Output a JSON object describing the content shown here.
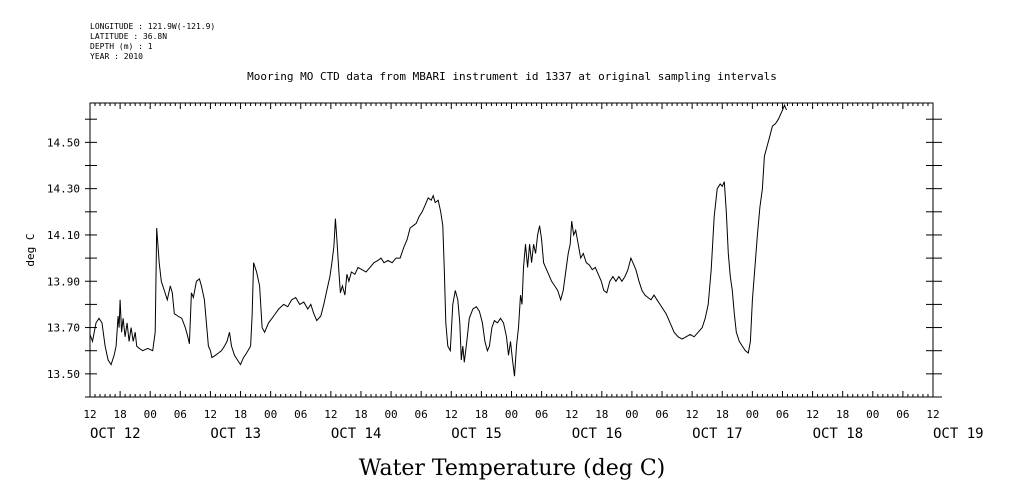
{
  "meta": {
    "longitude": "LONGITUDE : 121.9W(-121.9)",
    "latitude": "LATITUDE : 36.8N",
    "depth": "DEPTH (m) : 1",
    "year": "YEAR : 2010"
  },
  "chart_data": {
    "type": "line",
    "title": "Mooring MO CTD data from MBARI instrument id 1337 at original sampling intervals",
    "xlabel": "Water Temperature (deg C)",
    "ylabel": "deg C",
    "ylim": [
      13.4,
      14.67
    ],
    "xlim_hours": [
      0,
      168
    ],
    "yticks": [
      "13.50",
      "13.70",
      "13.90",
      "14.10",
      "14.30",
      "14.50"
    ],
    "xtick_hour_labels": [
      "12",
      "18",
      "00",
      "06",
      "12",
      "18",
      "00",
      "06",
      "12",
      "18",
      "00",
      "06",
      "12",
      "18",
      "00",
      "06",
      "12",
      "18",
      "00",
      "06",
      "12",
      "18",
      "00",
      "06",
      "12",
      "18",
      "00",
      "06",
      "12"
    ],
    "day_labels": [
      {
        "label": "OCT 12",
        "hour": 0
      },
      {
        "label": "OCT 13",
        "hour": 24
      },
      {
        "label": "OCT 14",
        "hour": 48
      },
      {
        "label": "OCT 15",
        "hour": 72
      },
      {
        "label": "OCT 16",
        "hour": 96
      },
      {
        "label": "OCT 17",
        "hour": 120
      },
      {
        "label": "OCT 18",
        "hour": 144
      },
      {
        "label": "OCT 19",
        "hour": 168
      }
    ],
    "series": [
      {
        "points": [
          [
            0,
            13.67
          ],
          [
            0.5,
            13.64
          ],
          [
            1.2,
            13.72
          ],
          [
            1.8,
            13.74
          ],
          [
            2.4,
            13.72
          ],
          [
            3,
            13.62
          ],
          [
            3.6,
            13.56
          ],
          [
            4.2,
            13.54
          ],
          [
            4.8,
            13.58
          ],
          [
            5.2,
            13.62
          ],
          [
            5.6,
            13.75
          ],
          [
            5.8,
            13.7
          ],
          [
            6,
            13.82
          ],
          [
            6.3,
            13.68
          ],
          [
            6.6,
            13.74
          ],
          [
            7,
            13.66
          ],
          [
            7.4,
            13.72
          ],
          [
            7.8,
            13.64
          ],
          [
            8.2,
            13.7
          ],
          [
            8.6,
            13.64
          ],
          [
            9,
            13.68
          ],
          [
            9.3,
            13.62
          ],
          [
            9.8,
            13.61
          ],
          [
            10.5,
            13.6
          ],
          [
            11.5,
            13.61
          ],
          [
            12.5,
            13.6
          ],
          [
            13,
            13.68
          ],
          [
            13.3,
            14.13
          ],
          [
            13.8,
            13.98
          ],
          [
            14.2,
            13.9
          ],
          [
            14.8,
            13.86
          ],
          [
            15.4,
            13.82
          ],
          [
            16,
            13.88
          ],
          [
            16.4,
            13.85
          ],
          [
            16.8,
            13.76
          ],
          [
            17.5,
            13.75
          ],
          [
            18.3,
            13.74
          ],
          [
            19,
            13.7
          ],
          [
            19.5,
            13.66
          ],
          [
            19.8,
            13.63
          ],
          [
            20.2,
            13.85
          ],
          [
            20.6,
            13.83
          ],
          [
            21.2,
            13.9
          ],
          [
            21.8,
            13.91
          ],
          [
            22.2,
            13.88
          ],
          [
            22.8,
            13.82
          ],
          [
            23.2,
            13.72
          ],
          [
            23.6,
            13.62
          ],
          [
            24,
            13.6
          ],
          [
            24.3,
            13.57
          ],
          [
            25,
            13.58
          ],
          [
            25.6,
            13.59
          ],
          [
            26.2,
            13.6
          ],
          [
            26.8,
            13.62
          ],
          [
            27.3,
            13.64
          ],
          [
            27.8,
            13.68
          ],
          [
            28.2,
            13.62
          ],
          [
            28.8,
            13.58
          ],
          [
            29.4,
            13.56
          ],
          [
            30,
            13.54
          ],
          [
            30.6,
            13.57
          ],
          [
            31.2,
            13.59
          ],
          [
            32,
            13.62
          ],
          [
            32.3,
            13.75
          ],
          [
            32.6,
            13.98
          ],
          [
            33.2,
            13.94
          ],
          [
            33.8,
            13.88
          ],
          [
            34.3,
            13.7
          ],
          [
            34.8,
            13.68
          ],
          [
            35.6,
            13.72
          ],
          [
            36.6,
            13.75
          ],
          [
            37.6,
            13.78
          ],
          [
            38.6,
            13.8
          ],
          [
            39.4,
            13.79
          ],
          [
            40.2,
            13.82
          ],
          [
            41,
            13.83
          ],
          [
            41.8,
            13.8
          ],
          [
            42.6,
            13.81
          ],
          [
            43.4,
            13.78
          ],
          [
            44,
            13.8
          ],
          [
            44.6,
            13.76
          ],
          [
            45.2,
            13.73
          ],
          [
            46,
            13.75
          ],
          [
            46.6,
            13.8
          ],
          [
            47.2,
            13.86
          ],
          [
            47.8,
            13.92
          ],
          [
            48.2,
            13.98
          ],
          [
            48.6,
            14.05
          ],
          [
            48.9,
            14.17
          ],
          [
            49.2,
            14.08
          ],
          [
            49.6,
            13.94
          ],
          [
            49.9,
            13.85
          ],
          [
            50.3,
            13.88
          ],
          [
            50.8,
            13.84
          ],
          [
            51.2,
            13.93
          ],
          [
            51.6,
            13.9
          ],
          [
            52.1,
            13.94
          ],
          [
            52.8,
            13.93
          ],
          [
            53.4,
            13.96
          ],
          [
            54.2,
            13.95
          ],
          [
            55,
            13.94
          ],
          [
            55.8,
            13.96
          ],
          [
            56.6,
            13.98
          ],
          [
            57.4,
            13.99
          ],
          [
            58,
            14.0
          ],
          [
            58.6,
            13.98
          ],
          [
            59.4,
            13.99
          ],
          [
            60.2,
            13.98
          ],
          [
            61,
            14.0
          ],
          [
            61.8,
            14.0
          ],
          [
            62.6,
            14.05
          ],
          [
            63.2,
            14.08
          ],
          [
            63.8,
            14.13
          ],
          [
            64.4,
            14.14
          ],
          [
            65,
            14.15
          ],
          [
            65.6,
            14.18
          ],
          [
            66.2,
            14.2
          ],
          [
            66.8,
            14.23
          ],
          [
            67.4,
            14.26
          ],
          [
            68,
            14.25
          ],
          [
            68.4,
            14.27
          ],
          [
            68.8,
            14.24
          ],
          [
            69.4,
            14.25
          ],
          [
            69.9,
            14.2
          ],
          [
            70.3,
            14.14
          ],
          [
            70.6,
            13.95
          ],
          [
            70.9,
            13.72
          ],
          [
            71.3,
            13.62
          ],
          [
            71.8,
            13.6
          ],
          [
            72.3,
            13.8
          ],
          [
            72.8,
            13.86
          ],
          [
            73.3,
            13.82
          ],
          [
            73.7,
            13.72
          ],
          [
            74,
            13.56
          ],
          [
            74.3,
            13.62
          ],
          [
            74.6,
            13.55
          ],
          [
            75.1,
            13.64
          ],
          [
            75.6,
            13.74
          ],
          [
            76.3,
            13.78
          ],
          [
            77,
            13.79
          ],
          [
            77.6,
            13.77
          ],
          [
            78.2,
            13.72
          ],
          [
            78.7,
            13.64
          ],
          [
            79.2,
            13.6
          ],
          [
            79.6,
            13.62
          ],
          [
            80.1,
            13.7
          ],
          [
            80.6,
            13.73
          ],
          [
            81.2,
            13.72
          ],
          [
            81.8,
            13.74
          ],
          [
            82.4,
            13.72
          ],
          [
            83,
            13.66
          ],
          [
            83.4,
            13.58
          ],
          [
            83.8,
            13.64
          ],
          [
            84.2,
            13.56
          ],
          [
            84.6,
            13.49
          ],
          [
            85,
            13.62
          ],
          [
            85.4,
            13.7
          ],
          [
            85.8,
            13.84
          ],
          [
            86.1,
            13.8
          ],
          [
            86.4,
            13.96
          ],
          [
            86.8,
            14.06
          ],
          [
            87.2,
            13.96
          ],
          [
            87.6,
            14.06
          ],
          [
            88,
            13.98
          ],
          [
            88.4,
            14.06
          ],
          [
            88.8,
            14.02
          ],
          [
            89.2,
            14.1
          ],
          [
            89.6,
            14.14
          ],
          [
            90,
            14.08
          ],
          [
            90.4,
            13.98
          ],
          [
            90.8,
            13.96
          ],
          [
            91.4,
            13.93
          ],
          [
            92,
            13.9
          ],
          [
            92.6,
            13.88
          ],
          [
            93.2,
            13.86
          ],
          [
            93.8,
            13.82
          ],
          [
            94.3,
            13.86
          ],
          [
            94.8,
            13.94
          ],
          [
            95.3,
            14.02
          ],
          [
            95.7,
            14.06
          ],
          [
            96,
            14.16
          ],
          [
            96.4,
            14.1
          ],
          [
            96.8,
            14.12
          ],
          [
            97.3,
            14.06
          ],
          [
            97.8,
            14.0
          ],
          [
            98.3,
            14.02
          ],
          [
            98.9,
            13.98
          ],
          [
            99.5,
            13.97
          ],
          [
            100.1,
            13.95
          ],
          [
            100.7,
            13.96
          ],
          [
            101.3,
            13.93
          ],
          [
            101.9,
            13.9
          ],
          [
            102.4,
            13.86
          ],
          [
            103,
            13.85
          ],
          [
            103.6,
            13.9
          ],
          [
            104.2,
            13.92
          ],
          [
            104.8,
            13.9
          ],
          [
            105.4,
            13.92
          ],
          [
            106,
            13.9
          ],
          [
            106.6,
            13.92
          ],
          [
            107.2,
            13.95
          ],
          [
            107.8,
            14.0
          ],
          [
            108.2,
            13.98
          ],
          [
            108.8,
            13.95
          ],
          [
            109.4,
            13.9
          ],
          [
            110,
            13.86
          ],
          [
            110.6,
            13.84
          ],
          [
            111.2,
            13.83
          ],
          [
            111.8,
            13.82
          ],
          [
            112.4,
            13.84
          ],
          [
            113,
            13.82
          ],
          [
            113.6,
            13.8
          ],
          [
            114.2,
            13.78
          ],
          [
            114.8,
            13.76
          ],
          [
            115.6,
            13.72
          ],
          [
            116.4,
            13.68
          ],
          [
            117.2,
            13.66
          ],
          [
            118,
            13.65
          ],
          [
            118.8,
            13.66
          ],
          [
            119.6,
            13.67
          ],
          [
            120.4,
            13.66
          ],
          [
            121.2,
            13.68
          ],
          [
            122,
            13.7
          ],
          [
            122.6,
            13.74
          ],
          [
            123.2,
            13.8
          ],
          [
            123.8,
            13.95
          ],
          [
            124.4,
            14.18
          ],
          [
            125,
            14.3
          ],
          [
            125.6,
            14.32
          ],
          [
            126,
            14.31
          ],
          [
            126.4,
            14.33
          ],
          [
            126.8,
            14.2
          ],
          [
            127.2,
            14.02
          ],
          [
            127.6,
            13.92
          ],
          [
            128,
            13.86
          ],
          [
            128.4,
            13.76
          ],
          [
            128.8,
            13.68
          ],
          [
            129.4,
            13.64
          ],
          [
            130,
            13.62
          ],
          [
            130.6,
            13.6
          ],
          [
            131.2,
            13.59
          ],
          [
            131.6,
            13.64
          ],
          [
            132,
            13.82
          ],
          [
            132.5,
            13.96
          ],
          [
            133,
            14.1
          ],
          [
            133.5,
            14.22
          ],
          [
            134,
            14.3
          ],
          [
            134.4,
            14.44
          ],
          [
            134.9,
            14.48
          ],
          [
            135.4,
            14.52
          ],
          [
            136,
            14.57
          ],
          [
            136.6,
            14.58
          ],
          [
            137.2,
            14.6
          ],
          [
            137.8,
            14.63
          ],
          [
            138.4,
            14.66
          ],
          [
            138.8,
            14.64
          ]
        ]
      }
    ]
  }
}
